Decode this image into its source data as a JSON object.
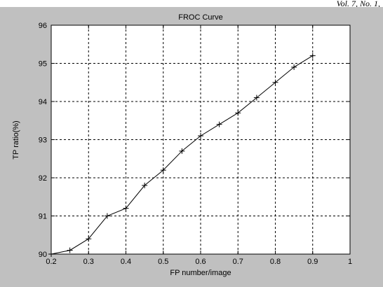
{
  "header": {
    "page_ref": "Vol. 7, No. 1,"
  },
  "chart_data": {
    "type": "line",
    "title": "FROC Curve",
    "xlabel": "FP number/image",
    "ylabel": "TP ratio(%)",
    "xlim": [
      0.2,
      1
    ],
    "ylim": [
      90,
      96
    ],
    "xticks": [
      0.2,
      0.3,
      0.4,
      0.5,
      0.6,
      0.7,
      0.8,
      0.9,
      1
    ],
    "yticks": [
      90,
      91,
      92,
      93,
      94,
      95,
      96
    ],
    "xtick_labels": [
      "0.2",
      "0.3",
      "0.4",
      "0.5",
      "0.6",
      "0.7",
      "0.8",
      "0.9",
      "1"
    ],
    "ytick_labels": [
      "90",
      "91",
      "92",
      "93",
      "94",
      "95",
      "96"
    ],
    "grid": true,
    "marker": "+",
    "line_color": "#000000",
    "background_color": "#c0c0c0",
    "plot_background_color": "#ffffff",
    "series": [
      {
        "x": [
          0.2,
          0.25,
          0.3,
          0.35,
          0.4,
          0.45,
          0.5,
          0.55,
          0.6,
          0.65,
          0.7,
          0.75,
          0.8,
          0.85,
          0.9
        ],
        "y": [
          90.0,
          90.1,
          90.4,
          91.0,
          91.2,
          91.8,
          92.2,
          92.7,
          93.1,
          93.4,
          93.7,
          94.1,
          94.5,
          94.9,
          95.2
        ]
      }
    ]
  }
}
